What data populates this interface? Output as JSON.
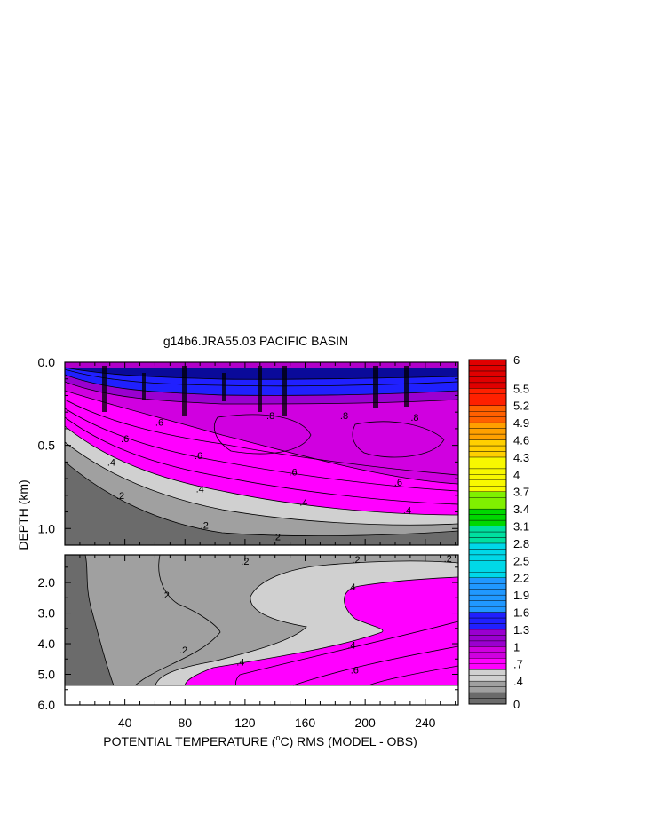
{
  "chart_data": {
    "type": "heatmap",
    "title": "g14b6.JRA55.03 PACIFIC BASIN",
    "xlabel": "POTENTIAL TEMPERATURE (",
    "xlabel_unit_sup": "o",
    "xlabel_unit": "C) RMS (MODEL - OBS)",
    "ylabel": "DEPTH (km)",
    "x_ticks": [
      "40",
      "80",
      "120",
      "160",
      "200",
      "240"
    ],
    "x_tick_values": [
      40,
      80,
      120,
      160,
      200,
      240
    ],
    "xlim": [
      0,
      262
    ],
    "upper_panel": {
      "ylim": [
        0.0,
        1.1
      ],
      "y_ticks": [
        "0.0",
        "0.5",
        "1.0"
      ],
      "y_tick_values": [
        0.0,
        0.5,
        1.0
      ],
      "contour_labels": [
        {
          "text": ".6",
          "x": 63,
          "y": 0.36
        },
        {
          "text": ".8",
          "x": 137,
          "y": 0.32
        },
        {
          "text": ".8",
          "x": 186,
          "y": 0.32
        },
        {
          "text": ".8",
          "x": 233,
          "y": 0.33
        },
        {
          "text": ".6",
          "x": 40,
          "y": 0.46
        },
        {
          "text": ".6",
          "x": 89,
          "y": 0.56
        },
        {
          "text": ".6",
          "x": 152,
          "y": 0.66
        },
        {
          "text": ".6",
          "x": 222,
          "y": 0.72
        },
        {
          "text": ".4",
          "x": 31,
          "y": 0.6
        },
        {
          "text": ".4",
          "x": 90,
          "y": 0.76
        },
        {
          "text": ".4",
          "x": 159,
          "y": 0.84
        },
        {
          "text": ".4",
          "x": 228,
          "y": 0.89
        },
        {
          "text": ".2",
          "x": 37,
          "y": 0.8
        },
        {
          "text": ".2",
          "x": 93,
          "y": 0.98
        },
        {
          "text": ".2",
          "x": 141,
          "y": 1.05
        }
      ]
    },
    "lower_panel": {
      "ylim": [
        1.1,
        6.0
      ],
      "y_ticks": [
        "2.0",
        "3.0",
        "4.0",
        "5.0",
        "6.0"
      ],
      "y_tick_values": [
        2.0,
        3.0,
        4.0,
        5.0,
        6.0
      ],
      "contour_labels": [
        {
          "text": ".2",
          "x": 120,
          "y": 1.3
        },
        {
          "text": ".2",
          "x": 194,
          "y": 1.25
        },
        {
          "text": ".2",
          "x": 255,
          "y": 1.22
        },
        {
          "text": ".2",
          "x": 67,
          "y": 2.4
        },
        {
          "text": ".2",
          "x": 79,
          "y": 4.2
        },
        {
          "text": ".4",
          "x": 191,
          "y": 2.15
        },
        {
          "text": ".4",
          "x": 191,
          "y": 4.05
        },
        {
          "text": ".4",
          "x": 117,
          "y": 4.6
        },
        {
          "text": ".6",
          "x": 193,
          "y": 4.85
        }
      ]
    },
    "colorbar": {
      "labels": [
        "6",
        "5.5",
        "5.2",
        "4.9",
        "4.6",
        "4.3",
        "4",
        "3.7",
        "3.4",
        "3.1",
        "2.8",
        "2.5",
        "2.2",
        "1.9",
        "1.6",
        "1.3",
        "1",
        ".7",
        ".4",
        "0"
      ],
      "label_values": [
        6.0,
        5.5,
        5.2,
        4.9,
        4.6,
        4.3,
        4.0,
        3.7,
        3.4,
        3.1,
        2.8,
        2.5,
        2.2,
        1.9,
        1.6,
        1.3,
        1.0,
        0.7,
        0.4,
        0.0
      ],
      "range": [
        0,
        6
      ],
      "band_colors": {
        "0.0": "#6b6b6b",
        "0.2": "#a0a0a0",
        "0.4": "#d0d0d0",
        "0.6": "#ff00ff",
        "0.8": "#d000e0",
        "1.0": "#9a00d0",
        "1.3": "#2020ff",
        "1.6": "#2098ff",
        "2.2": "#00d8e8",
        "2.8": "#00e0a0",
        "3.1": "#00d800",
        "3.4": "#80f000",
        "3.7": "#f8f800",
        "4.3": "#ffd000",
        "4.6": "#ffa000",
        "4.9": "#ff6000",
        "5.2": "#ff2000",
        "5.5": "#e00000",
        "6.0": "#b00000"
      }
    }
  }
}
